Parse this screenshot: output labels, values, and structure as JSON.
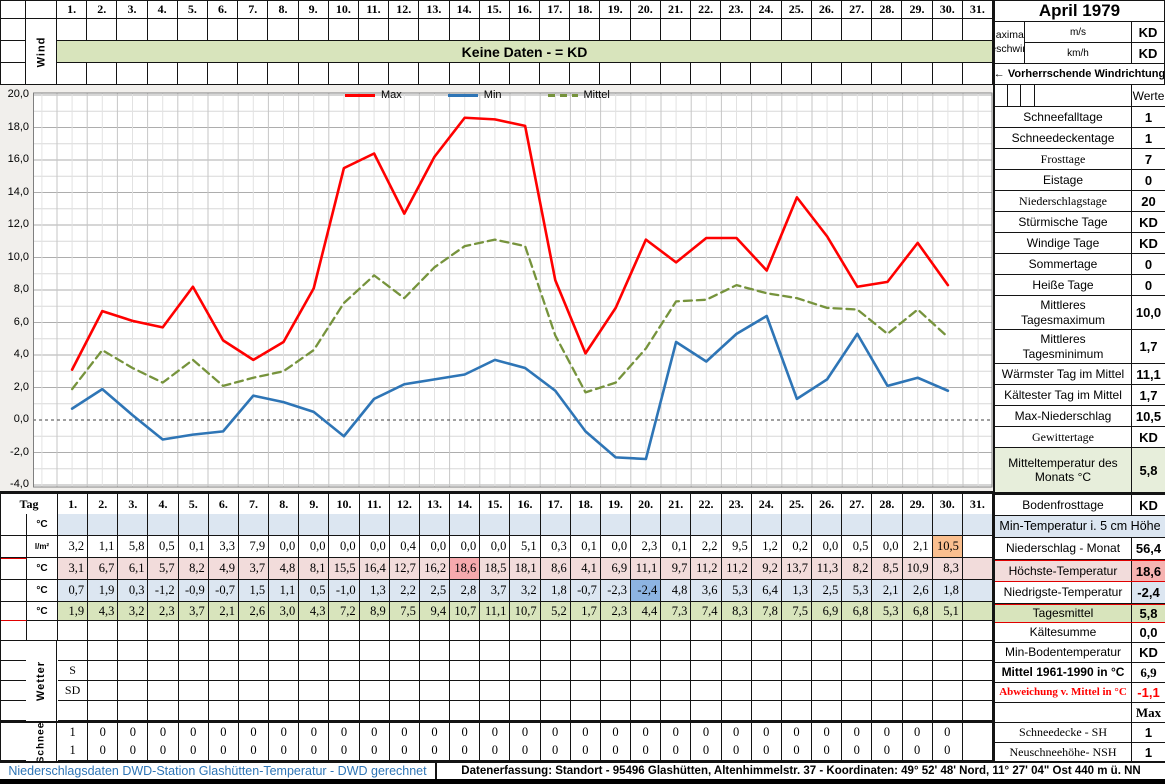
{
  "title": "April 1979",
  "wind": {
    "row_label": "Wind",
    "banner": "Keine Daten -  = KD",
    "speed_units": [
      "m/s",
      "km/h"
    ],
    "max_wind_label": "Maximale Windgeschwindigkeit",
    "max_wind_values": [
      "KD",
      "KD"
    ],
    "direction_note": "←  Vorherrschende Windrichtung"
  },
  "days": [
    "1.",
    "2.",
    "3.",
    "4.",
    "5.",
    "6.",
    "7.",
    "8.",
    "9.",
    "10.",
    "11.",
    "12.",
    "13.",
    "14.",
    "15.",
    "16.",
    "17.",
    "18.",
    "19.",
    "20.",
    "21.",
    "22.",
    "23.",
    "24.",
    "25.",
    "26.",
    "27.",
    "28.",
    "29.",
    "30.",
    "31."
  ],
  "chart_data": {
    "type": "line",
    "x": [
      1,
      2,
      3,
      4,
      5,
      6,
      7,
      8,
      9,
      10,
      11,
      12,
      13,
      14,
      15,
      16,
      17,
      18,
      19,
      20,
      21,
      22,
      23,
      24,
      25,
      26,
      27,
      28,
      29,
      30
    ],
    "series": [
      {
        "name": "Max",
        "color": "#ff0000",
        "dashed": false,
        "values": [
          3.1,
          6.7,
          6.1,
          5.7,
          8.2,
          4.9,
          3.7,
          4.8,
          8.1,
          15.5,
          16.4,
          12.7,
          16.2,
          18.6,
          18.5,
          18.1,
          8.6,
          4.1,
          6.9,
          11.1,
          9.7,
          11.2,
          11.2,
          9.2,
          13.7,
          11.3,
          8.2,
          8.5,
          10.9,
          8.3
        ]
      },
      {
        "name": "Min",
        "color": "#2e75b6",
        "dashed": false,
        "values": [
          0.7,
          1.9,
          0.3,
          -1.2,
          -0.9,
          -0.7,
          1.5,
          1.1,
          0.5,
          -1.0,
          1.3,
          2.2,
          2.5,
          2.8,
          3.7,
          3.2,
          1.8,
          -0.7,
          -2.3,
          -2.4,
          4.8,
          3.6,
          5.3,
          6.4,
          1.3,
          2.5,
          5.3,
          2.1,
          2.6,
          1.8
        ]
      },
      {
        "name": "Mittel",
        "color": "#76933c",
        "dashed": true,
        "values": [
          1.9,
          4.3,
          3.2,
          2.3,
          3.7,
          2.1,
          2.6,
          3.0,
          4.3,
          7.2,
          8.9,
          7.5,
          9.4,
          10.7,
          11.1,
          10.7,
          5.2,
          1.7,
          2.3,
          4.4,
          7.3,
          7.4,
          8.3,
          7.8,
          7.5,
          6.9,
          6.8,
          5.3,
          6.8,
          5.1
        ]
      }
    ],
    "ylim": [
      -4,
      20
    ],
    "ytick_step": 2,
    "grid": true,
    "legend_position": "top-center"
  },
  "stats_panel": {
    "header": "Werte",
    "rows": [
      {
        "label": "Schneefalltage",
        "value": "1"
      },
      {
        "label": "Schneedeckentage",
        "value": "1"
      },
      {
        "label": "Frosttage",
        "value": "7",
        "serif": true
      },
      {
        "label": "Eistage",
        "value": "0"
      },
      {
        "label": "Niederschlagstage",
        "value": "20",
        "serif": true
      },
      {
        "label": "Stürmische Tage",
        "value": "KD"
      },
      {
        "label": "Windige Tage",
        "value": "KD"
      },
      {
        "label": "Sommertage",
        "value": "0"
      },
      {
        "label": "Heiße Tage",
        "value": "0"
      },
      {
        "label": "Mittleres Tagesmaximum",
        "value": "10,0",
        "tall": true
      },
      {
        "label": "Mittleres Tagesminimum",
        "value": "1,7",
        "tall": true
      },
      {
        "label": "Wärmster Tag im Mittel",
        "value": "11,1"
      },
      {
        "label": "Kältester Tag im Mittel",
        "value": "1,7"
      },
      {
        "label": "Max-Niederschlag",
        "value": "10,5"
      },
      {
        "label": "Gewittertage",
        "value": "KD",
        "serif": true
      },
      {
        "label": "Mitteltemperatur des Monats °C",
        "value": "5,8",
        "tall2": true,
        "bg": "#e7eedb"
      }
    ]
  },
  "stats_panel_lower": {
    "rows": [
      {
        "label": "Bodenfrosttage",
        "value": "KD"
      },
      {
        "band": "Min-Temperatur i. 5 cm Höhe",
        "bg": "#dce6f1"
      },
      {
        "label": "Niederschlag - Monat",
        "value": "56,4"
      },
      {
        "label": "Höchste-Temperatur",
        "value": "18,6",
        "label_bg": "#f2dcdb",
        "value_bg": "#f6b3b1",
        "red_border": true
      },
      {
        "label": "Niedrigste-Temperatur",
        "value": "-2,4",
        "value_bg": "#dce6f1"
      },
      {
        "label": "Tagesmittel",
        "value": "5,8",
        "label_bg": "#d8e4bc",
        "value_bg": "#d8e4bc",
        "red_border": true
      },
      {
        "label": "Kältesumme",
        "value": "0,0"
      },
      {
        "label": "Min-Bodentemperatur",
        "value": "KD"
      },
      {
        "label": "Mittel 1961-1990 in °C",
        "value": "6,9",
        "label_bold": true,
        "value_serif": true
      },
      {
        "label": "Abweichung v. Mittel in °C",
        "value": "-1,1",
        "serif": true,
        "red": true,
        "small": true
      },
      {
        "label": "",
        "value": "Max",
        "value_serif": true
      },
      {
        "label": "Schneedecke -   SH",
        "value": "1",
        "serif": true
      },
      {
        "label": "Neuschneehöhe- NSH",
        "value": "1",
        "serif": true
      }
    ]
  },
  "bottom_table": {
    "corner_label": "Tag",
    "weather_group_label": "Wetter",
    "weather_sub_labels": [
      "S",
      "SD"
    ],
    "snow_group_label": "Schnee",
    "soil_min_temp": {
      "unit": "°C",
      "bg": "#dce6f1",
      "values": [
        "",
        "",
        "",
        "",
        "",
        "",
        "",
        "",
        "",
        "",
        "",
        "",
        "",
        "",
        "",
        "",
        "",
        "",
        "",
        "",
        "",
        "",
        "",
        "",
        "",
        "",
        "",
        "",
        "",
        "",
        ""
      ]
    },
    "precipitation": {
      "unit": "l/m²",
      "bg": "#ffffff",
      "highlight_day": 30,
      "highlight_color": "#fabf8f",
      "values": [
        "3,2",
        "1,1",
        "5,8",
        "0,5",
        "0,1",
        "3,3",
        "7,9",
        "0,0",
        "0,0",
        "0,0",
        "0,0",
        "0,4",
        "0,0",
        "0,0",
        "0,0",
        "5,1",
        "0,3",
        "0,1",
        "0,0",
        "2,3",
        "0,1",
        "2,2",
        "9,5",
        "1,2",
        "0,2",
        "0,0",
        "0,5",
        "0,0",
        "2,1",
        "10,5",
        ""
      ]
    },
    "max_temp": {
      "unit": "°C",
      "bg": "#f2dcdb",
      "highlight_day": 14,
      "highlight_color": "#f6a9ad",
      "values": [
        "3,1",
        "6,7",
        "6,1",
        "5,7",
        "8,2",
        "4,9",
        "3,7",
        "4,8",
        "8,1",
        "15,5",
        "16,4",
        "12,7",
        "16,2",
        "18,6",
        "18,5",
        "18,1",
        "8,6",
        "4,1",
        "6,9",
        "11,1",
        "9,7",
        "11,2",
        "11,2",
        "9,2",
        "13,7",
        "11,3",
        "8,2",
        "8,5",
        "10,9",
        "8,3",
        ""
      ]
    },
    "min_temp": {
      "unit": "°C",
      "bg": "#dce6f1",
      "highlight_day": 20,
      "highlight_color": "#8db4e2",
      "values": [
        "0,7",
        "1,9",
        "0,3",
        "-1,2",
        "-0,9",
        "-0,7",
        "1,5",
        "1,1",
        "0,5",
        "-1,0",
        "1,3",
        "2,2",
        "2,5",
        "2,8",
        "3,7",
        "3,2",
        "1,8",
        "-0,7",
        "-2,3",
        "-2,4",
        "4,8",
        "3,6",
        "5,3",
        "6,4",
        "1,3",
        "2,5",
        "5,3",
        "2,1",
        "2,6",
        "1,8",
        ""
      ]
    },
    "daily_mean": {
      "unit": "°C",
      "bg": "#d8e4bc",
      "values": [
        "1,9",
        "4,3",
        "3,2",
        "2,3",
        "3,7",
        "2,1",
        "2,6",
        "3,0",
        "4,3",
        "7,2",
        "8,9",
        "7,5",
        "9,4",
        "10,7",
        "11,1",
        "10,7",
        "5,2",
        "1,7",
        "2,3",
        "4,4",
        "7,3",
        "7,4",
        "8,3",
        "7,8",
        "7,5",
        "6,9",
        "6,8",
        "5,3",
        "6,8",
        "5,1",
        ""
      ]
    },
    "snow_cover": {
      "values": [
        "1",
        "0",
        "0",
        "0",
        "0",
        "0",
        "0",
        "0",
        "0",
        "0",
        "0",
        "0",
        "0",
        "0",
        "0",
        "0",
        "0",
        "0",
        "0",
        "0",
        "0",
        "0",
        "0",
        "0",
        "0",
        "0",
        "0",
        "0",
        "0",
        "0",
        ""
      ]
    },
    "new_snow": {
      "values": [
        "1",
        "0",
        "0",
        "0",
        "0",
        "0",
        "0",
        "0",
        "0",
        "0",
        "0",
        "0",
        "0",
        "0",
        "0",
        "0",
        "0",
        "0",
        "0",
        "0",
        "0",
        "0",
        "0",
        "0",
        "0",
        "0",
        "0",
        "0",
        "0",
        "0",
        ""
      ]
    }
  },
  "footer": {
    "left": "Niederschlagsdaten DWD-Station Glashütten-Temperatur -  DWD gerechnet",
    "right": "Datenerfassung:  Standort -  95496  Glashütten, Altenhimmelstr. 37 - Koordinaten:  49° 52' 48' Nord,   11° 27' 04\" Ost  440 m ü. NN"
  },
  "colors": {
    "band_green": "#d8e4bc",
    "footer_blue": "#2e75b6",
    "red_accent": "#ff0000"
  }
}
